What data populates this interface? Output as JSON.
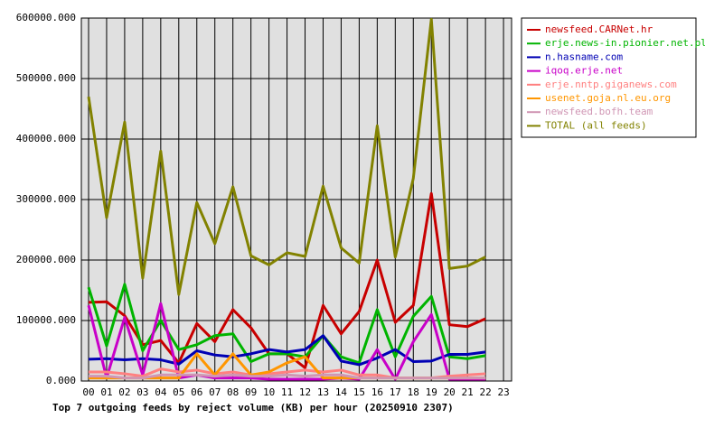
{
  "chart_data": {
    "type": "line",
    "title": "Top 7 outgoing feeds by reject volume (KB) per hour (20250910 2307)",
    "categories": [
      "00",
      "01",
      "02",
      "03",
      "04",
      "05",
      "06",
      "07",
      "08",
      "09",
      "10",
      "11",
      "12",
      "13",
      "14",
      "15",
      "16",
      "17",
      "18",
      "19",
      "20",
      "21",
      "22",
      "23"
    ],
    "ylim": [
      0,
      600000
    ],
    "yticks": [
      {
        "value": 0,
        "label": "0.000"
      },
      {
        "value": 100000,
        "label": "100000.000"
      },
      {
        "value": 200000,
        "label": "200000.000"
      },
      {
        "value": 300000,
        "label": "300000.000"
      },
      {
        "value": 400000,
        "label": "400000.000"
      },
      {
        "value": 500000,
        "label": "500000.000"
      },
      {
        "value": 600000,
        "label": "600000.000"
      }
    ],
    "grid": true,
    "legend": "right",
    "series": [
      {
        "name": "newsfeed.CARNet.hr",
        "color": "#c80000",
        "values": [
          130000,
          131000,
          108000,
          60000,
          67000,
          30000,
          95000,
          65000,
          118000,
          88000,
          45000,
          45000,
          22000,
          125000,
          78000,
          115000,
          200000,
          97000,
          125000,
          310000,
          93000,
          90000,
          103000,
          null
        ]
      },
      {
        "name": "erje.news-in.pionier.net.pl",
        "color": "#00b400",
        "values": [
          155000,
          58000,
          160000,
          50000,
          100000,
          52000,
          60000,
          75000,
          78000,
          32000,
          45000,
          45000,
          40000,
          75000,
          40000,
          30000,
          118000,
          40000,
          107000,
          140000,
          40000,
          37000,
          42000,
          null
        ]
      },
      {
        "name": "n.hasname.com",
        "color": "#0000b4",
        "values": [
          36000,
          37000,
          35000,
          37000,
          35000,
          28000,
          50000,
          43000,
          40000,
          45000,
          52000,
          48000,
          52000,
          75000,
          33000,
          27000,
          38000,
          52000,
          32000,
          33000,
          44000,
          44000,
          48000,
          null
        ]
      },
      {
        "name": "iqoq.erje.net",
        "color": "#c800c8",
        "values": [
          125000,
          5000,
          105000,
          10000,
          128000,
          5000,
          10000,
          5000,
          5000,
          5000,
          3000,
          3000,
          3000,
          3000,
          5000,
          3000,
          52000,
          3000,
          65000,
          110000,
          3000,
          3000,
          3000,
          null
        ]
      },
      {
        "name": "erje.nntp.giganews.com",
        "color": "#ff8080",
        "values": [
          15000,
          15000,
          12000,
          8000,
          20000,
          15000,
          18000,
          12000,
          15000,
          10000,
          12000,
          15000,
          18000,
          15000,
          18000,
          10000,
          10000,
          5000,
          5000,
          5000,
          8000,
          10000,
          12000,
          null
        ]
      },
      {
        "name": "usenet.goja.nl.eu.org",
        "color": "#ff9600",
        "values": [
          5000,
          5000,
          5000,
          5000,
          5000,
          5000,
          45000,
          10000,
          45000,
          10000,
          15000,
          30000,
          40000,
          5000,
          5000,
          5000,
          5000,
          5000,
          5000,
          5000,
          5000,
          5000,
          5000,
          null
        ]
      },
      {
        "name": "newsfeed.bofh.team",
        "color": "#d096b4",
        "values": [
          8000,
          8000,
          5000,
          5000,
          10000,
          10000,
          10000,
          8000,
          10000,
          8000,
          8000,
          10000,
          8000,
          10000,
          10000,
          5000,
          5000,
          5000,
          5000,
          5000,
          5000,
          5000,
          5000,
          null
        ]
      },
      {
        "name": "TOTAL (all feeds)",
        "color": "#828200",
        "values": [
          470000,
          270000,
          428000,
          170000,
          380000,
          143000,
          295000,
          227000,
          321000,
          207000,
          192000,
          212000,
          206000,
          322000,
          220000,
          195000,
          422000,
          205000,
          335000,
          598000,
          186000,
          190000,
          205000,
          null
        ]
      }
    ]
  }
}
